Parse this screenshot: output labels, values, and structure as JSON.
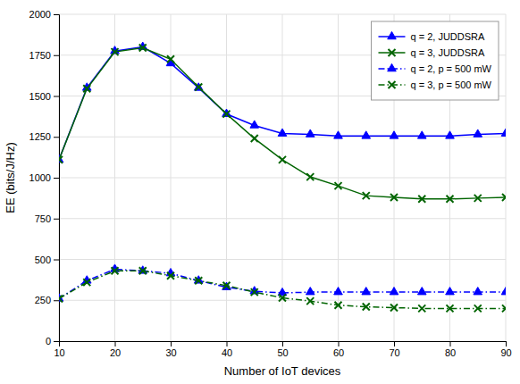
{
  "chart_data": {
    "type": "line",
    "x": [
      10,
      15,
      20,
      25,
      30,
      35,
      40,
      45,
      50,
      55,
      60,
      65,
      70,
      75,
      80,
      85,
      90
    ],
    "series": [
      {
        "name": "q = 2, JUDDSRA",
        "color": "#0000FF",
        "marker": "triangle",
        "line_style": "solid",
        "values": [
          1110,
          1550,
          1775,
          1800,
          1700,
          1550,
          1390,
          1320,
          1270,
          1265,
          1255,
          1255,
          1255,
          1255,
          1255,
          1265,
          1270
        ]
      },
      {
        "name": "q = 3, JUDDSRA",
        "color": "#006400",
        "marker": "x",
        "line_style": "solid",
        "values": [
          1110,
          1545,
          1770,
          1795,
          1725,
          1555,
          1390,
          1240,
          1110,
          1005,
          950,
          890,
          880,
          870,
          870,
          875,
          880
        ]
      },
      {
        "name": "q = 2, p = 500 mW",
        "color": "#0000FF",
        "marker": "triangle",
        "line_style": "dash-dot",
        "values": [
          260,
          370,
          440,
          430,
          415,
          370,
          330,
          305,
          295,
          300,
          300,
          300,
          300,
          300,
          300,
          300,
          300
        ]
      },
      {
        "name": "q = 3, p = 500 mW",
        "color": "#006400",
        "marker": "x",
        "line_style": "dash-dot",
        "values": [
          260,
          360,
          430,
          430,
          400,
          370,
          340,
          300,
          265,
          245,
          220,
          210,
          205,
          200,
          200,
          200,
          200
        ]
      }
    ],
    "xlabel": "Number of IoT devices",
    "ylabel": "EE (bits/J/Hz)",
    "xlim": [
      10,
      90
    ],
    "ylim": [
      0,
      2000
    ],
    "xticks": [
      10,
      20,
      30,
      40,
      50,
      60,
      70,
      80,
      90
    ],
    "yticks": [
      0,
      250,
      500,
      750,
      1000,
      1250,
      1500,
      1750,
      2000
    ],
    "grid": true,
    "legend": "upper right"
  }
}
